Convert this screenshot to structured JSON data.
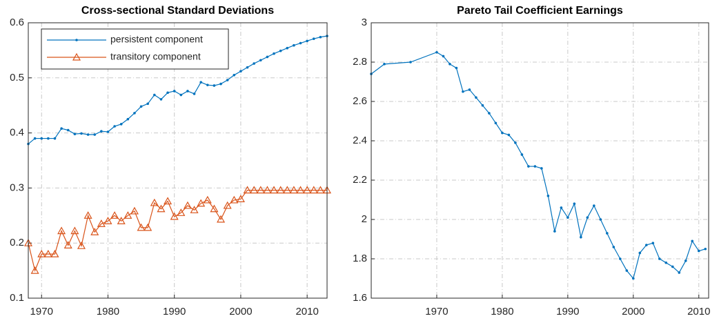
{
  "chart_data": [
    {
      "type": "line",
      "title": "Cross-sectional Standard Deviations",
      "x": [
        1968,
        1969,
        1970,
        1971,
        1972,
        1973,
        1974,
        1975,
        1976,
        1977,
        1978,
        1979,
        1980,
        1981,
        1982,
        1983,
        1984,
        1985,
        1986,
        1987,
        1988,
        1989,
        1990,
        1991,
        1992,
        1993,
        1994,
        1995,
        1996,
        1997,
        1998,
        1999,
        2000,
        2001,
        2002,
        2003,
        2004,
        2005,
        2006,
        2007,
        2008,
        2009,
        2010,
        2011,
        2012,
        2013
      ],
      "series": [
        {
          "name": "persistent component",
          "color": "#0072BD",
          "marker": "dot",
          "values": [
            0.38,
            0.39,
            0.39,
            0.39,
            0.39,
            0.408,
            0.405,
            0.398,
            0.399,
            0.397,
            0.397,
            0.403,
            0.402,
            0.412,
            0.416,
            0.425,
            0.436,
            0.448,
            0.453,
            0.469,
            0.461,
            0.473,
            0.476,
            0.469,
            0.476,
            0.471,
            0.492,
            0.487,
            0.486,
            0.489,
            0.496,
            0.505,
            0.512,
            0.519,
            0.526,
            0.532,
            0.538,
            0.544,
            0.549,
            0.554,
            0.559,
            0.563,
            0.567,
            0.571,
            0.574,
            0.576
          ]
        },
        {
          "name": "transitory component",
          "color": "#D95319",
          "marker": "triangle",
          "values": [
            0.2,
            0.15,
            0.18,
            0.18,
            0.18,
            0.222,
            0.196,
            0.222,
            0.195,
            0.25,
            0.22,
            0.235,
            0.24,
            0.25,
            0.24,
            0.25,
            0.258,
            0.228,
            0.228,
            0.273,
            0.262,
            0.276,
            0.248,
            0.255,
            0.268,
            0.26,
            0.272,
            0.278,
            0.262,
            0.243,
            0.268,
            0.278,
            0.28,
            0.296,
            0.296,
            0.296,
            0.296,
            0.296,
            0.296,
            0.296,
            0.296,
            0.296,
            0.296,
            0.296,
            0.296,
            0.296
          ]
        }
      ],
      "xlim": [
        1968,
        2013
      ],
      "ylim": [
        0.1,
        0.6
      ],
      "xticks": [
        1970,
        1980,
        1990,
        2000,
        2010
      ],
      "yticks": [
        0.1,
        0.2,
        0.3,
        0.4,
        0.5,
        0.6
      ],
      "grid": true,
      "legend": "upper left"
    },
    {
      "type": "line",
      "title": "Pareto Tail Coefficient Earnings",
      "x": [
        1960,
        1962,
        1966,
        1970,
        1971,
        1972,
        1973,
        1974,
        1975,
        1976,
        1977,
        1978,
        1979,
        1980,
        1981,
        1982,
        1983,
        1984,
        1985,
        1986,
        1987,
        1988,
        1989,
        1990,
        1991,
        1992,
        1993,
        1994,
        1995,
        1996,
        1997,
        1998,
        1999,
        2000,
        2001,
        2002,
        2003,
        2004,
        2005,
        2006,
        2007,
        2008,
        2009,
        2010,
        2011
      ],
      "series": [
        {
          "color": "#0072BD",
          "marker": "dot",
          "values": [
            2.74,
            2.79,
            2.8,
            2.85,
            2.83,
            2.79,
            2.77,
            2.65,
            2.66,
            2.62,
            2.58,
            2.54,
            2.49,
            2.44,
            2.43,
            2.39,
            2.33,
            2.27,
            2.27,
            2.26,
            2.12,
            1.94,
            2.06,
            2.01,
            2.08,
            1.91,
            2.01,
            2.07,
            2.0,
            1.93,
            1.86,
            1.8,
            1.74,
            1.7,
            1.83,
            1.87,
            1.88,
            1.8,
            1.78,
            1.76,
            1.73,
            1.79,
            1.89,
            1.84,
            1.85
          ]
        }
      ],
      "xlim": [
        1960,
        2011.5
      ],
      "ylim": [
        1.6,
        3
      ],
      "xticks": [
        1970,
        1980,
        1990,
        2000,
        2010
      ],
      "yticks": [
        1.6,
        1.8,
        2,
        2.2,
        2.4,
        2.6,
        2.8,
        3
      ],
      "grid": true
    }
  ]
}
